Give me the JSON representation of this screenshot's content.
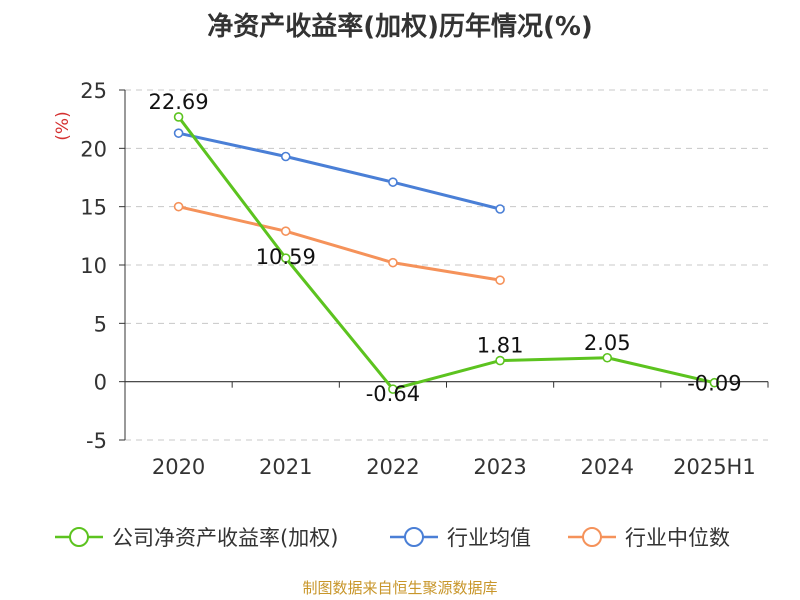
{
  "chart_data": {
    "type": "line",
    "title": "净资产收益率(加权)历年情况(%)",
    "ylabel": "(%)",
    "categories": [
      "2020",
      "2021",
      "2022",
      "2023",
      "2024",
      "2025H1"
    ],
    "ylim": [
      -5,
      25
    ],
    "yticks": [
      -5,
      0,
      5,
      10,
      15,
      20,
      25
    ],
    "grid": true,
    "legend_position": "bottom",
    "series": [
      {
        "name": "公司净资产收益率(加权)",
        "color": "#5cc31f",
        "values": [
          22.69,
          10.59,
          -0.64,
          1.81,
          2.05,
          -0.09
        ],
        "data_labels": [
          "22.69",
          "10.59",
          "-0.64",
          "1.81",
          "2.05",
          "-0.09"
        ]
      },
      {
        "name": "行业均值",
        "color": "#4a7fd6",
        "values": [
          21.3,
          19.3,
          17.1,
          14.8,
          null,
          null
        ]
      },
      {
        "name": "行业中位数",
        "color": "#f5925a",
        "values": [
          15.0,
          12.9,
          10.2,
          8.7,
          null,
          null
        ]
      }
    ]
  },
  "source": "制图数据来自恒生聚源数据库"
}
